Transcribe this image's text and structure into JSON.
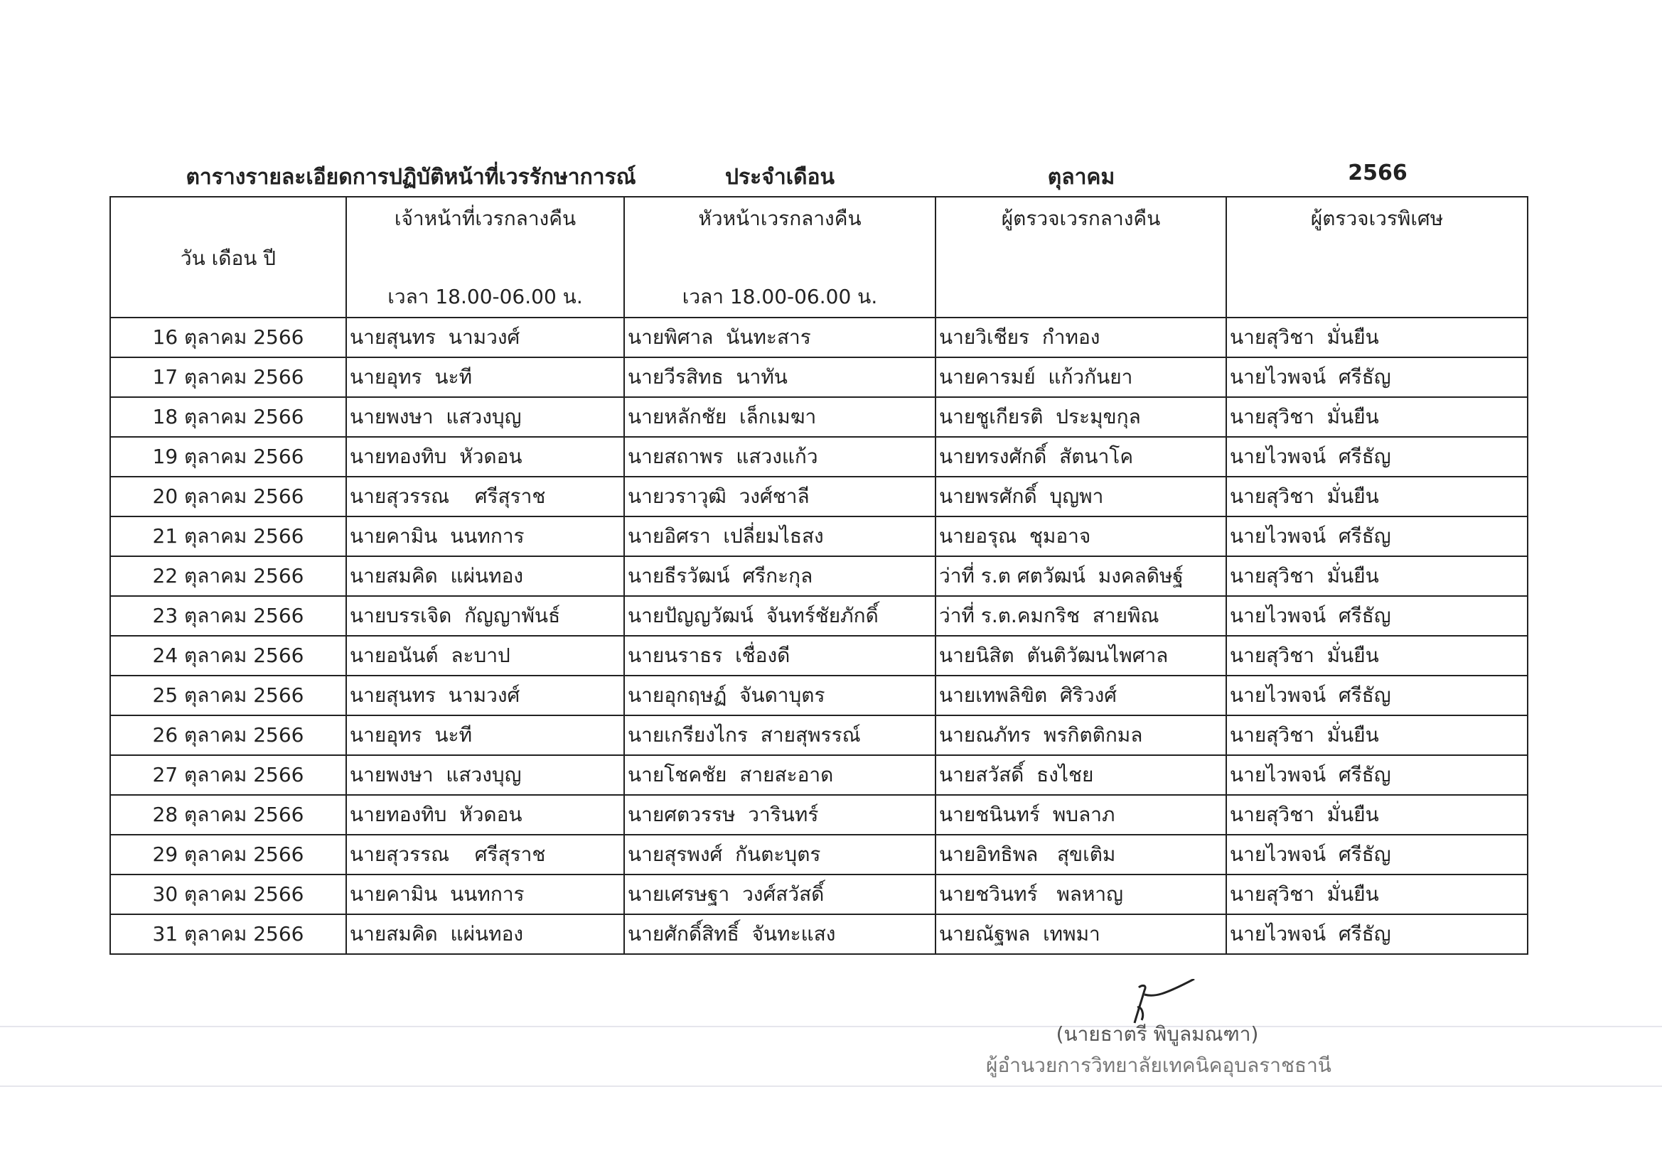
{
  "title": {
    "main": "ตารางรายละเอียดการปฏิบัติหน้าที่เวรรักษาการณ์",
    "period_label": "ประจำเดือน",
    "month": "ตุลาคม",
    "year": "2566"
  },
  "table": {
    "headers": {
      "date": "วัน เดือน ปี",
      "night_officer": "เจ้าหน้าที่เวรกลางคืน",
      "night_officer_time": "เวลา 18.00-06.00 น.",
      "night_head": "หัวหน้าเวรกลางคืน",
      "night_head_time": "เวลา 18.00-06.00 น.",
      "night_inspector": "ผู้ตรวจเวรกลางคืน",
      "special_inspector": "ผู้ตรวจเวรพิเศษ"
    },
    "rows": [
      [
        "16 ตุลาคม 2566",
        "นายสุนทร  นามวงศ์",
        "นายพิศาล  นันทะสาร",
        "นายวิเชียร  กำทอง",
        "นายสุวิชา  มั่นยืน"
      ],
      [
        "17 ตุลาคม 2566",
        "นายอุทร  นะที",
        "นายวีรสิทธ  นาทัน",
        "นายคารมย์  แก้วกันยา",
        "นายไวพจน์  ศรีธัญ"
      ],
      [
        "18 ตุลาคม 2566",
        "นายพงษา  แสวงบุญ",
        "นายหลักชัย  เล็กเมฆา",
        "นายชูเกียรติ  ประมุขกุล",
        "นายสุวิชา  มั่นยืน"
      ],
      [
        "19 ตุลาคม 2566",
        "นายทองทิบ  หัวดอน",
        "นายสถาพร  แสวงแก้ว",
        "นายทรงศักดิ์  สัตนาโค",
        "นายไวพจน์  ศรีธัญ"
      ],
      [
        "20 ตุลาคม 2566",
        "นายสุวรรณ    ศรีสุราช",
        "นายวราวุฒิ  วงศ์ชาลี",
        "นายพรศักดิ์  บุญพา",
        "นายสุวิชา  มั่นยืน"
      ],
      [
        "21 ตุลาคม 2566",
        "นายคามิน  นนทการ",
        "นายอิศรา  เปลี่ยมไธสง",
        "นายอรุณ  ชุมอาจ",
        "นายไวพจน์  ศรีธัญ"
      ],
      [
        "22 ตุลาคม 2566",
        "นายสมคิด  แผ่นทอง",
        "นายธีรวัฒน์  ศรีกะกุล",
        "ว่าที่ ร.ต ศตวัฒน์  มงคลดิษฐ์",
        "นายสุวิชา  มั่นยืน"
      ],
      [
        "23 ตุลาคม 2566",
        "นายบรรเจิด  กัญญาพันธ์",
        "นายปัญญวัฒน์  จันทร์ชัยภักดิ์",
        "ว่าที่ ร.ต.คมกริช  สายพิณ",
        "นายไวพจน์  ศรีธัญ"
      ],
      [
        "24 ตุลาคม 2566",
        "นายอนันต์  ละบาป",
        "นายนราธร  เชื่องดี",
        "นายนิสิต  ตันติวัฒนไพศาล",
        "นายสุวิชา  มั่นยืน"
      ],
      [
        "25 ตุลาคม 2566",
        "นายสุนทร  นามวงศ์",
        "นายอุกฤษฏ์  จันดาบุตร",
        "นายเทพลิขิต  ศิริวงศ์",
        "นายไวพจน์  ศรีธัญ"
      ],
      [
        "26 ตุลาคม 2566",
        "นายอุทร  นะที",
        "นายเกรียงไกร  สายสุพรรณ์",
        "นายณภัทร  พรกิตติกมล",
        "นายสุวิชา  มั่นยืน"
      ],
      [
        "27 ตุลาคม 2566",
        "นายพงษา  แสวงบุญ",
        "นายโชคชัย  สายสะอาด",
        "นายสวัสดิ์  ธงไชย",
        "นายไวพจน์  ศรีธัญ"
      ],
      [
        "28 ตุลาคม 2566",
        "นายทองทิบ  หัวดอน",
        "นายศตวรรษ  วารินทร์",
        "นายชนินทร์  พบลาภ",
        "นายสุวิชา  มั่นยืน"
      ],
      [
        "29 ตุลาคม 2566",
        "นายสุวรรณ    ศรีสุราช",
        "นายสุรพงศ์  กันตะบุตร",
        "นายอิทธิพล   สุขเติม",
        "นายไวพจน์  ศรีธัญ"
      ],
      [
        "30 ตุลาคม 2566",
        "นายคามิน  นนทการ",
        "นายเศรษฐา  วงศ์สวัสดิ์",
        "นายชวินทร์   พลหาญ",
        "นายสุวิชา  มั่นยืน"
      ],
      [
        "31 ตุลาคม 2566",
        "นายสมคิด  แผ่นทอง",
        "นายศักดิ์สิทธิ์  จันทะแสง",
        "นายณัฐพล  เทพมา",
        "นายไวพจน์  ศรีธัญ"
      ]
    ]
  },
  "signature": {
    "name": "(นายธาตรี  พิบูลมณฑา)",
    "position": "ผู้อำนวยการวิทยาลัยเทคนิคอุบลราชธานี"
  }
}
